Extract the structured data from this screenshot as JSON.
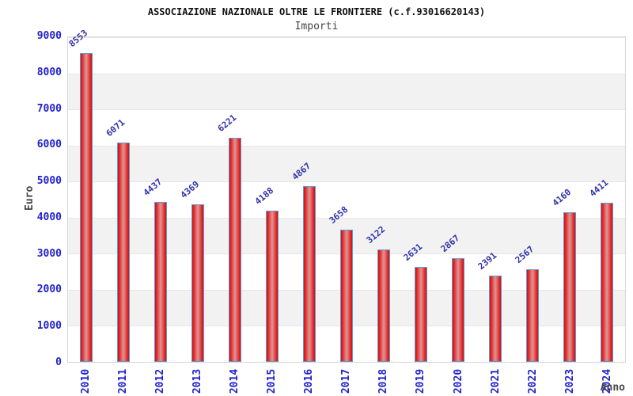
{
  "header": {
    "title": "ASSOCIAZIONE NAZIONALE OLTRE LE FRONTIERE (c.f.93016620143)",
    "subtitle": "Importi"
  },
  "chart_data": {
    "type": "bar",
    "title": "ASSOCIAZIONE NAZIONALE OLTRE LE FRONTIERE (c.f.93016620143)",
    "subtitle": "Importi",
    "categories": [
      "2010",
      "2011",
      "2012",
      "2013",
      "2014",
      "2015",
      "2016",
      "2017",
      "2018",
      "2019",
      "2020",
      "2021",
      "2022",
      "2023",
      "2024"
    ],
    "values": [
      8553,
      6071,
      4437,
      4369,
      6221,
      4188,
      4867,
      3658,
      3122,
      2631,
      2867,
      2391,
      2567,
      4160,
      4411
    ],
    "xlabel": "Anno",
    "ylabel": "Euro",
    "ylim": [
      0,
      9000
    ],
    "yticks": [
      0,
      1000,
      2000,
      3000,
      4000,
      5000,
      6000,
      7000,
      8000,
      9000
    ],
    "grid": "horizontal-bands",
    "legend": "none",
    "colors": {
      "bar_fill_edge": "#c81414",
      "bar_fill_center": "#d89898",
      "bar_border": "#5b9bd5",
      "axis_tick_text": "#2222cc",
      "value_label_text": "#3333aa",
      "band_gray": "#f2f2f2",
      "plot_border": "#d9d9d9",
      "title_text": "#111111",
      "axis_title_text": "#444444"
    }
  }
}
